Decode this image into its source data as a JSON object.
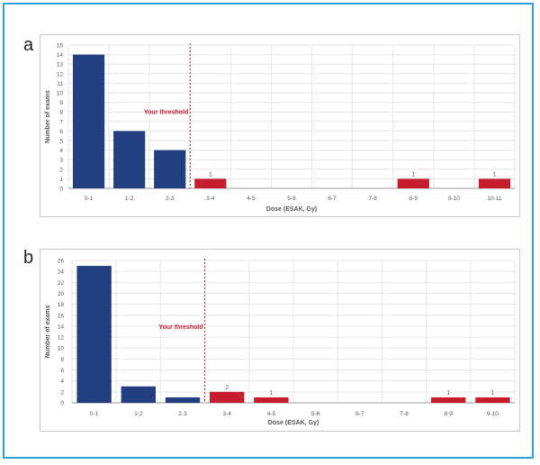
{
  "panels": [
    {
      "label": "a",
      "chart_data": {
        "type": "bar",
        "xlabel": "Dose (ESAK, Gy)",
        "ylabel": "Number of exams",
        "ylim": [
          0,
          15
        ],
        "yticks": [
          "0",
          "1",
          "2",
          "3",
          "4",
          "5",
          "6",
          "7",
          "8",
          "9",
          "10",
          "11",
          "12",
          "13",
          "14",
          "15"
        ],
        "categories": [
          "0-1",
          "1-2",
          "2-3",
          "3-4",
          "4-5",
          "5-6",
          "6-7",
          "7-8",
          "8-9",
          "9-10",
          "10-11"
        ],
        "values": [
          14,
          6,
          4,
          1,
          0,
          0,
          0,
          0,
          1,
          0,
          1
        ],
        "bar_labels": [
          "",
          "",
          "",
          "1",
          "",
          "",
          "",
          "",
          "1",
          "",
          "1"
        ],
        "threshold_label": "Your threshold",
        "threshold_index": 3,
        "below_color": "#223f82",
        "above_color": "#c51c2e",
        "threshold_color": "#c51c2e",
        "grid": true
      }
    },
    {
      "label": "b",
      "chart_data": {
        "type": "bar",
        "xlabel": "Dose (ESAK, Gy)",
        "ylabel": "Number of exams",
        "ylim": [
          0,
          26
        ],
        "yticks": [
          "0",
          "2",
          "4",
          "6",
          "8",
          "10",
          "12",
          "14",
          "16",
          "18",
          "20",
          "22",
          "24",
          "26"
        ],
        "categories": [
          "0-1",
          "1-2",
          "2-3",
          "3-4",
          "4-5",
          "5-6",
          "6-7",
          "7-8",
          "8-9",
          "9-10"
        ],
        "values": [
          25,
          3,
          1,
          2,
          1,
          0,
          0,
          0,
          1,
          1
        ],
        "bar_labels": [
          "",
          "",
          "",
          "2",
          "1",
          "",
          "",
          "",
          "1",
          "1"
        ],
        "threshold_label": "Your threshold",
        "threshold_index": 3,
        "below_color": "#223f82",
        "above_color": "#c51c2e",
        "threshold_color": "#c51c2e",
        "grid": true
      }
    }
  ]
}
